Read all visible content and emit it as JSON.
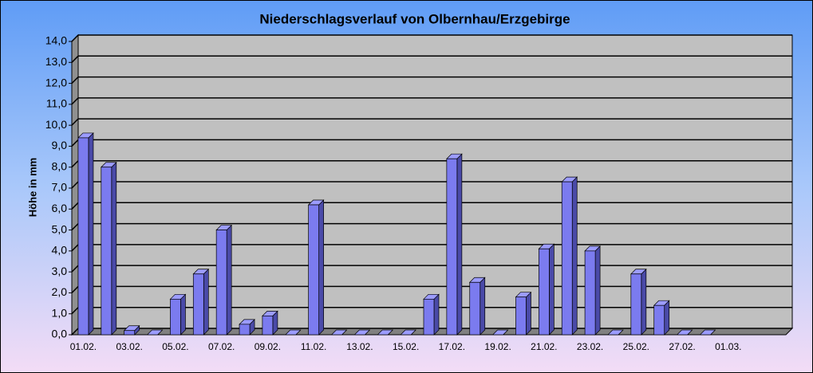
{
  "chart_data": {
    "type": "bar3d",
    "title": "Niederschlagsverlauf von Olbernhau/Erzgebirge",
    "y_label": "Höhe in  mm",
    "categories": [
      "01.02.",
      null,
      "03.02.",
      null,
      "05.02.",
      null,
      "07.02.",
      null,
      "09.02.",
      null,
      "11.02.",
      null,
      "13.02.",
      null,
      "15.02.",
      null,
      "17.02.",
      null,
      "19.02.",
      null,
      "21.02.",
      null,
      "23.02.",
      null,
      "25.02.",
      null,
      "27.02.",
      null,
      "01.03."
    ],
    "values": [
      9.4,
      8.0,
      0.2,
      0,
      1.7,
      2.9,
      5.0,
      0.5,
      0.9,
      0,
      6.2,
      0,
      0,
      0,
      0,
      1.7,
      8.4,
      2.5,
      0,
      1.8,
      4.1,
      7.3,
      4.0,
      0,
      2.9,
      1.4,
      0,
      0,
      null
    ],
    "color": "#7b7bef",
    "ylim": [
      0,
      14
    ],
    "yticks": [
      {
        "value": 0,
        "label": "0,0"
      },
      {
        "value": 1,
        "label": "1,0"
      },
      {
        "value": 2,
        "label": "2,0"
      },
      {
        "value": 3,
        "label": "3,0"
      },
      {
        "value": 4,
        "label": "4,0"
      },
      {
        "value": 5,
        "label": "5,0"
      },
      {
        "value": 6,
        "label": "6,0"
      },
      {
        "value": 7,
        "label": "7,0"
      },
      {
        "value": 8,
        "label": "8,0"
      },
      {
        "value": 9,
        "label": "9,0"
      },
      {
        "value": 10,
        "label": "10,0"
      },
      {
        "value": 11,
        "label": "11,0"
      },
      {
        "value": 12,
        "label": "12,0"
      },
      {
        "value": 13,
        "label": "13,0"
      },
      {
        "value": 14,
        "label": "14,0"
      }
    ],
    "grid": true
  }
}
